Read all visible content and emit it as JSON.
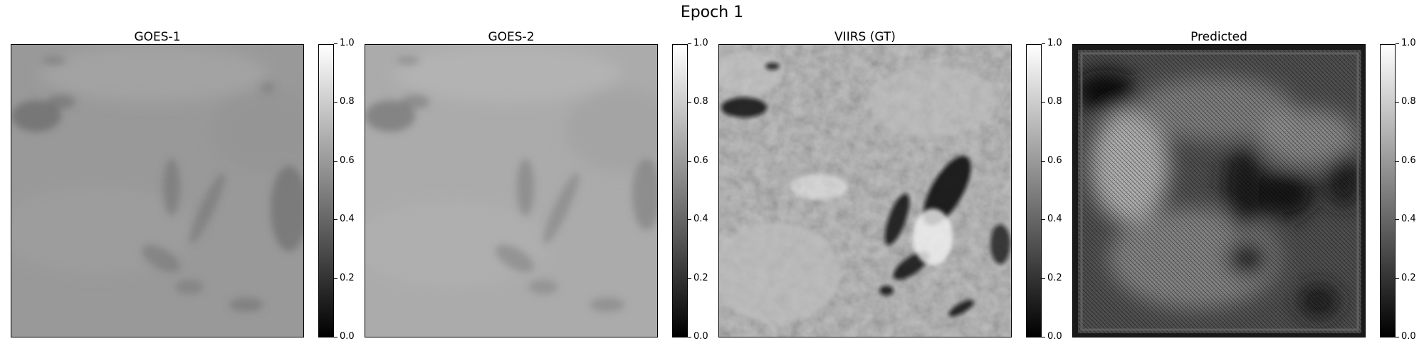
{
  "figure_title": "Epoch 1",
  "chart_data": [
    {
      "type": "heatmap",
      "title": "GOES-1",
      "colormap": "gray",
      "colorbar": {
        "range": [
          0.0,
          1.0
        ],
        "ticks": [
          "0.0",
          "0.2",
          "0.4",
          "0.6",
          "0.8",
          "1.0"
        ]
      },
      "base_gray": "#9a9a9a"
    },
    {
      "type": "heatmap",
      "title": "GOES-2",
      "colormap": "gray",
      "colorbar": {
        "range": [
          0.0,
          1.0
        ],
        "ticks": [
          "0.0",
          "0.2",
          "0.4",
          "0.6",
          "0.8",
          "1.0"
        ]
      },
      "base_gray": "#acacac"
    },
    {
      "type": "heatmap",
      "title": "VIIRS (GT)",
      "colormap": "gray",
      "colorbar": {
        "range": [
          0.0,
          1.0
        ],
        "ticks": [
          "0.0",
          "0.2",
          "0.4",
          "0.6",
          "0.8",
          "1.0"
        ]
      },
      "base_gray": "#a8a8a8"
    },
    {
      "type": "heatmap",
      "title": "Predicted",
      "colormap": "gray",
      "colorbar": {
        "range": [
          0.0,
          1.0
        ],
        "ticks": [
          "0.0",
          "0.2",
          "0.4",
          "0.6",
          "0.8",
          "1.0"
        ]
      },
      "base_gray": "#505050"
    }
  ]
}
